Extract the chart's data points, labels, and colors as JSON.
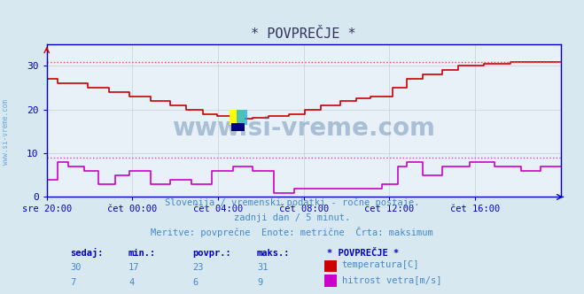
{
  "title": "* POVPREČJE *",
  "bg_color": "#d8e8f0",
  "plot_bg_color": "#e8f0f8",
  "grid_color": "#c0c8d0",
  "watermark": "www.si-vreme.com",
  "subtitle_lines": [
    "Slovenija / vremenski podatki - ročne postaje.",
    "zadnji dan / 5 minut.",
    "Meritve: povprečne  Enote: metrične  Črta: maksimum"
  ],
  "table_headers": [
    "sedaj:",
    "min.:",
    "povpr.:",
    "maks.:"
  ],
  "table_row1": [
    30,
    17,
    23,
    31
  ],
  "table_row2": [
    7,
    4,
    6,
    9
  ],
  "legend_title": "* POVPREČJE *",
  "legend_items": [
    "temperatura[C]",
    "hitrost vetra[m/s]"
  ],
  "legend_colors": [
    "#cc0000",
    "#cc00cc"
  ],
  "temp_color": "#cc0000",
  "wind_color": "#cc00cc",
  "dotted_temp_color": "#ff4444",
  "dotted_wind_color": "#cc44cc",
  "axis_color": "#0000cc",
  "text_color": "#4488cc",
  "label_color": "#336699",
  "ylim": [
    0,
    35
  ],
  "xlim_hours": 24,
  "x_ticks_labels": [
    "sre 20:00",
    "čet 00:00",
    "čet 04:00",
    "čet 08:00",
    "čet 12:00",
    "čet 16:00"
  ],
  "x_ticks_pos": [
    0.0,
    0.1667,
    0.3333,
    0.5,
    0.6667,
    0.8333
  ],
  "temp_max_line": 31,
  "wind_max_line": 9
}
